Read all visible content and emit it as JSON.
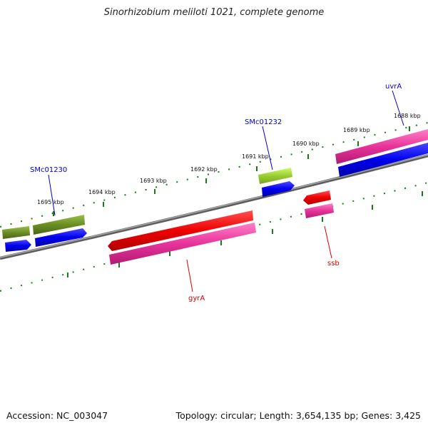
{
  "title": "Sinorhizobium meliloti 1021, complete genome",
  "footer": {
    "accession": "Accession: NC_003047",
    "summary": "Topology: circular; Length: 3,654,135 bp; Genes: 3,425"
  },
  "colors": {
    "backbone": "#808080",
    "ruler_tick": "#1a7a1a",
    "label_blue": "#0000cc",
    "label_red": "#d40000",
    "gene_blue": "#0000ee",
    "gene_red": "#ee0000",
    "gene_pink": "#e8339a",
    "gene_olive": "#6b8e23",
    "gene_lime": "#9acd32"
  },
  "ruler": {
    "labels": [
      "1695 kbp",
      "1694 kbp",
      "1693 kbp",
      "1692 kbp",
      "1691 kbp",
      "1690 kbp",
      "1689 kbp",
      "1688 kbp"
    ]
  },
  "gene_labels": [
    "SMc01230",
    "SMc01232",
    "uvrA",
    "gyrA",
    "ssb"
  ]
}
